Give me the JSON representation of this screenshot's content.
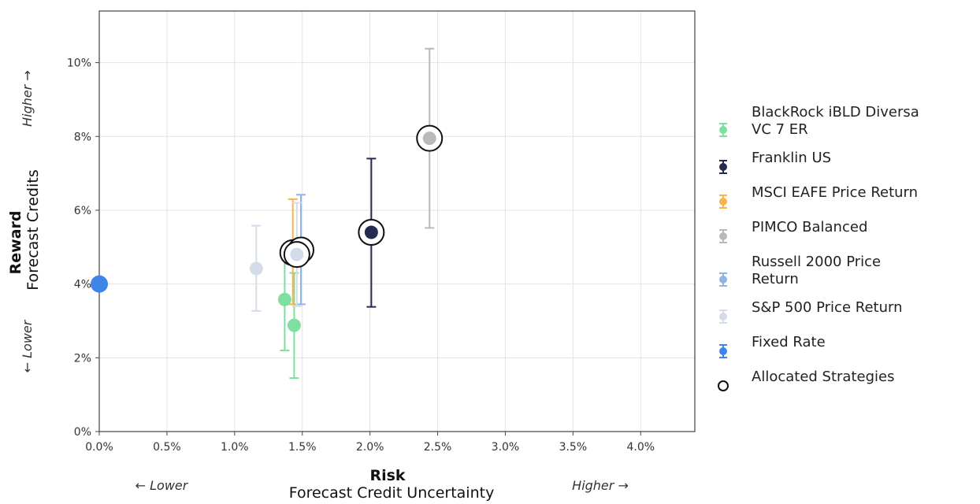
{
  "chart_data": {
    "type": "scatter",
    "xlabel_bold": "Risk",
    "xlabel": "Forecast Credit Uncertainty",
    "ylabel_bold": "Reward",
    "ylabel": "Forecast Credits",
    "x_lower_hint": "← Lower",
    "x_higher_hint": "Higher →",
    "y_lower_hint": "← Lower",
    "y_higher_hint": "Higher →",
    "xlim": [
      0,
      4.4
    ],
    "ylim": [
      0,
      11.4
    ],
    "x_ticks": [
      0,
      0.5,
      1.0,
      1.5,
      2.0,
      2.5,
      3.0,
      3.5,
      4.0
    ],
    "x_tick_labels": [
      "0.0%",
      "0.5%",
      "1.0%",
      "1.5%",
      "2.0%",
      "2.5%",
      "3.0%",
      "3.5%",
      "4.0%"
    ],
    "y_ticks": [
      0,
      2,
      4,
      6,
      8,
      10
    ],
    "y_tick_labels": [
      "0%",
      "2%",
      "4%",
      "6%",
      "8%",
      "10%"
    ],
    "grid": true,
    "legend_position": "right",
    "series": [
      {
        "name": "BlackRock iBLD Diversa VC 7 ER",
        "color": "#7ee0a0",
        "points": [
          {
            "x": 1.37,
            "y": 3.58,
            "low": 2.2,
            "high": 4.9,
            "allocated": false
          },
          {
            "x": 1.44,
            "y": 2.88,
            "low": 1.45,
            "high": 4.3,
            "allocated": false
          }
        ]
      },
      {
        "name": "Franklin US",
        "color": "#252b4f",
        "points": [
          {
            "x": 2.01,
            "y": 5.4,
            "low": 3.38,
            "high": 7.4,
            "allocated": true
          }
        ]
      },
      {
        "name": "MSCI EAFE Price Return",
        "color": "#f5b54a",
        "points": [
          {
            "x": 1.43,
            "y": 4.85,
            "low": 3.45,
            "high": 6.3,
            "allocated": true
          }
        ]
      },
      {
        "name": "PIMCO Balanced",
        "color": "#b9b9b9",
        "points": [
          {
            "x": 2.44,
            "y": 7.95,
            "low": 5.52,
            "high": 10.38,
            "allocated": true
          }
        ]
      },
      {
        "name": "Russell 2000 Price Return",
        "color": "#8fb6e0",
        "points": [
          {
            "x": 1.49,
            "y": 4.92,
            "low": 3.45,
            "high": 6.42,
            "allocated": true
          }
        ]
      },
      {
        "name": "S&P 500 Price Return",
        "color": "#d3dce8",
        "points": [
          {
            "x": 1.16,
            "y": 4.42,
            "low": 3.27,
            "high": 5.58,
            "allocated": false
          },
          {
            "x": 1.46,
            "y": 4.8,
            "low": 3.4,
            "high": 6.2,
            "allocated": true
          }
        ]
      },
      {
        "name": "Fixed Rate",
        "color": "#3d85e6",
        "points": [
          {
            "x": 0.0,
            "y": 4.0,
            "low": 4.0,
            "high": 4.0,
            "allocated": false
          }
        ]
      }
    ],
    "allocated_legend_label": "Allocated Strategies"
  }
}
